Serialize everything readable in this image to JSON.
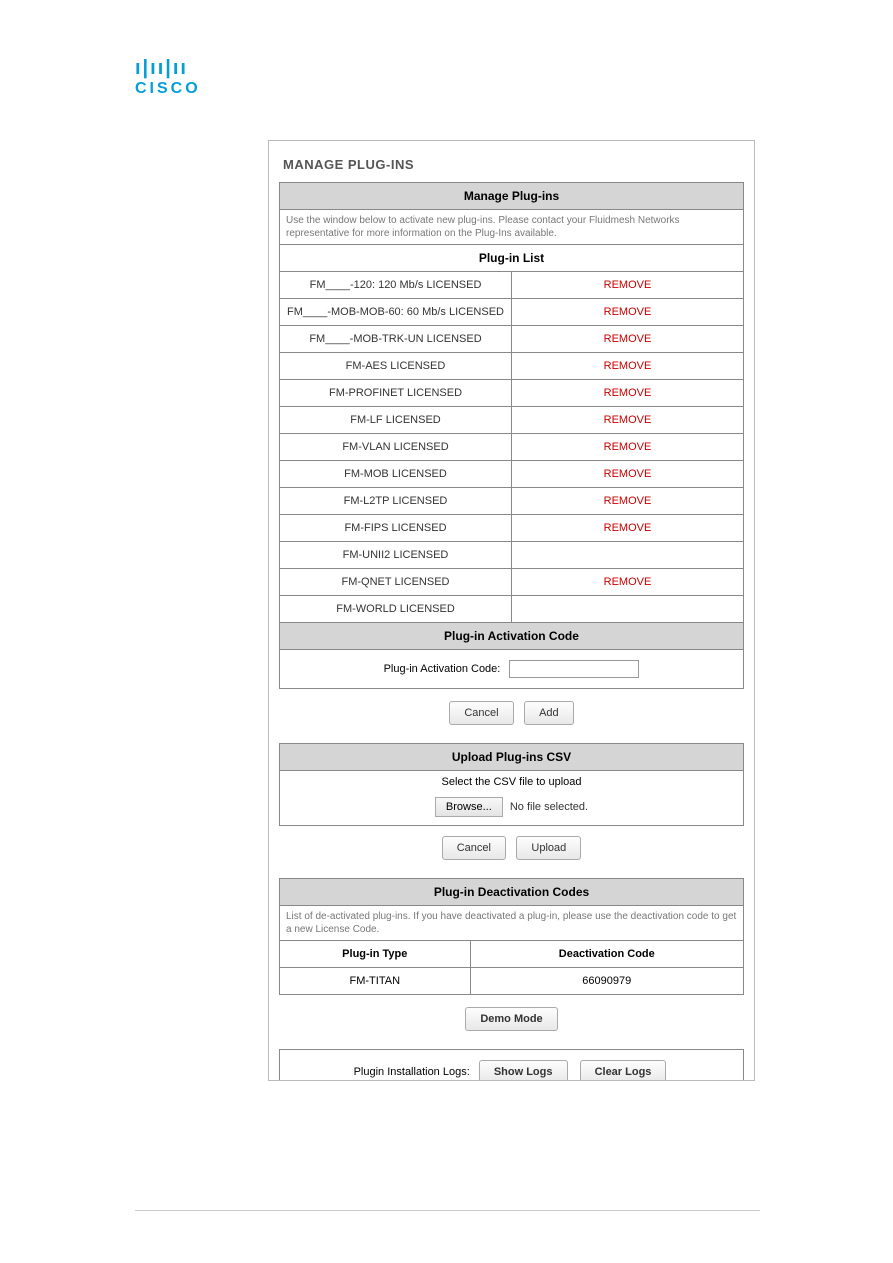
{
  "logo": {
    "bars": "ı|ıı|ıı",
    "text": "CISCO"
  },
  "page": {
    "title": "MANAGE PLUG-INS"
  },
  "manage_section": {
    "header": "Manage Plug-ins",
    "info": "Use the window below to activate new plug-ins. Please contact your Fluidmesh Networks representative for more information on the Plug-Ins available.",
    "list_header": "Plug-in List",
    "plugins": [
      {
        "name": "FM____-120: 120 Mb/s LICENSED",
        "action": "REMOVE"
      },
      {
        "name": "FM____-MOB-MOB-60: 60 Mb/s LICENSED",
        "action": "REMOVE"
      },
      {
        "name": "FM____-MOB-TRK-UN LICENSED",
        "action": "REMOVE"
      },
      {
        "name": "FM-AES LICENSED",
        "action": "REMOVE"
      },
      {
        "name": "FM-PROFINET LICENSED",
        "action": "REMOVE"
      },
      {
        "name": "FM-LF LICENSED",
        "action": "REMOVE"
      },
      {
        "name": "FM-VLAN LICENSED",
        "action": "REMOVE"
      },
      {
        "name": "FM-MOB LICENSED",
        "action": "REMOVE"
      },
      {
        "name": "FM-L2TP LICENSED",
        "action": "REMOVE"
      },
      {
        "name": "FM-FIPS LICENSED",
        "action": "REMOVE"
      },
      {
        "name": "FM-UNII2 LICENSED",
        "action": ""
      },
      {
        "name": "FM-QNET LICENSED",
        "action": "REMOVE"
      },
      {
        "name": "FM-WORLD LICENSED",
        "action": ""
      }
    ],
    "activation_header": "Plug-in Activation Code",
    "activation_label": "Plug-in Activation Code:",
    "activation_value": "",
    "cancel_btn": "Cancel",
    "add_btn": "Add"
  },
  "upload_section": {
    "header": "Upload Plug-ins CSV",
    "select_label": "Select the CSV file to upload",
    "browse_btn": "Browse...",
    "no_file": "No file selected.",
    "cancel_btn": "Cancel",
    "upload_btn": "Upload"
  },
  "deactivation_section": {
    "header": "Plug-in Deactivation Codes",
    "info": "List of de-activated plug-ins. If you have deactivated a plug-in, please use the deactivation code to get a new License Code.",
    "col1": "Plug-in Type",
    "col2": "Deactivation Code",
    "rows": [
      {
        "type": "FM-TITAN",
        "code": "66090979"
      }
    ]
  },
  "demo_btn": "Demo Mode",
  "logs_section": {
    "label": "Plugin Installation Logs:",
    "show_btn": "Show Logs",
    "clear_btn": "Clear Logs"
  }
}
